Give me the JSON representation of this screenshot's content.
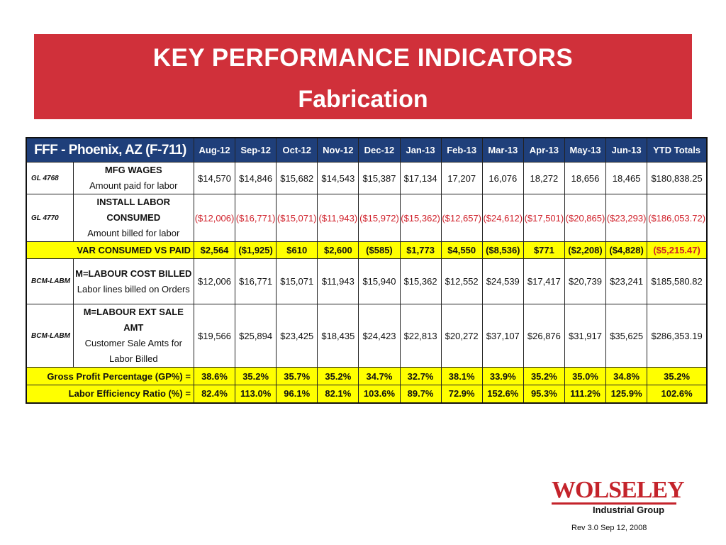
{
  "banner": {
    "title": "KEY PERFORMANCE INDICATORS",
    "subtitle": "Fabrication"
  },
  "table": {
    "region": "FFF - Phoenix, AZ (F-711)",
    "months": [
      "Aug-12",
      "Sep-12",
      "Oct-12",
      "Nov-12",
      "Dec-12",
      "Jan-13",
      "Feb-13",
      "Mar-13",
      "Apr-13",
      "May-13",
      "Jun-13"
    ],
    "ytd_header": "YTD Totals",
    "rows": [
      {
        "gl": "GL 4768",
        "title": "MFG WAGES",
        "subtitle": "Amount paid for labor",
        "values": [
          "$14,570",
          "$14,846",
          "$15,682",
          "$14,543",
          "$15,387",
          "$17,134",
          "17,207",
          "16,076",
          "18,272",
          "18,656",
          "18,465"
        ],
        "ytd": "$180,838.25"
      },
      {
        "gl": "GL 4770",
        "title": "INSTALL LABOR CONSUMED",
        "subtitle": "Amount billed for labor",
        "values": [
          "($12,006)",
          "($16,771)",
          "($15,071)",
          "($11,943)",
          "($15,972)",
          "($15,362)",
          "($12,657)",
          "($24,612)",
          "($17,501)",
          "($20,865)",
          "($23,293)"
        ],
        "ytd": "($186,053.72)"
      },
      {
        "label": "VAR CONSUMED VS PAID",
        "values": [
          "$2,564",
          "($1,925)",
          "$610",
          "$2,600",
          "($585)",
          "$1,773",
          "$4,550",
          "($8,536)",
          "$771",
          "($2,208)",
          "($4,828)"
        ],
        "ytd": "($5,215.47)"
      },
      {
        "gl": "BCM-LABM",
        "title": "M=LABOUR COST BILLED",
        "subtitle": "Labor lines billed on Orders",
        "values": [
          "$12,006",
          "$16,771",
          "$15,071",
          "$11,943",
          "$15,940",
          "$15,362",
          "$12,552",
          "$24,539",
          "$17,417",
          "$20,739",
          "$23,241"
        ],
        "ytd": "$185,580.82"
      },
      {
        "gl": "BCM-LABM",
        "title": "M=LABOUR EXT SALE AMT",
        "subtitle": "Customer Sale Amts for Labor Billed",
        "values": [
          "$19,566",
          "$25,894",
          "$23,425",
          "$18,435",
          "$24,423",
          "$22,813",
          "$20,272",
          "$37,107",
          "$26,876",
          "$31,917",
          "$35,625"
        ],
        "ytd": "$286,353.19"
      },
      {
        "label": "Gross Profit Percentage (GP%) =",
        "values": [
          "38.6%",
          "35.2%",
          "35.7%",
          "35.2%",
          "34.7%",
          "32.7%",
          "38.1%",
          "33.9%",
          "35.2%",
          "35.0%",
          "34.8%"
        ],
        "ytd": "35.2%"
      },
      {
        "label": "Labor Efficiency Ratio (%)  =",
        "values": [
          "82.4%",
          "113.0%",
          "96.1%",
          "82.1%",
          "103.6%",
          "89.7%",
          "72.9%",
          "152.6%",
          "95.3%",
          "111.2%",
          "125.9%"
        ],
        "ytd": "102.6%"
      }
    ]
  },
  "logo": {
    "name": "WOLSELEY",
    "division": "Industrial Group"
  },
  "footer": {
    "revision": "Rev 3.0 Sep 12, 2008"
  },
  "colors": {
    "banner": "#d0303a",
    "header": "#1f3f7a",
    "highlight": "#ffff00",
    "negative": "#d0202a"
  }
}
